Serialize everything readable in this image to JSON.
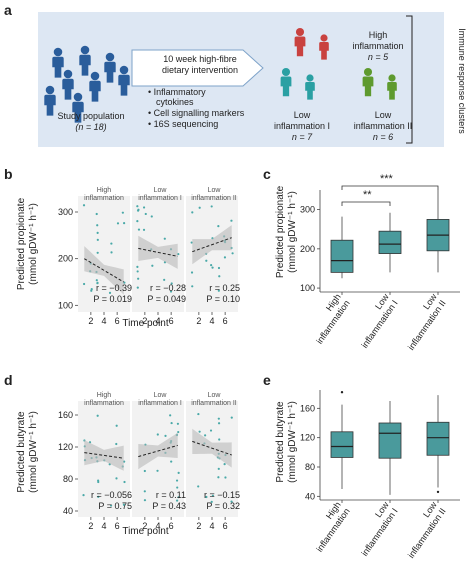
{
  "panel_a": {
    "letter": "a",
    "study_population_label": "Study population",
    "study_n": "(n = 18)",
    "intervention": [
      "10 week high-fibre",
      "dietary intervention"
    ],
    "bullets": [
      "Inflammatory",
      "cytokines",
      "Cell signalling markers",
      "16S sequencing"
    ],
    "clusters": [
      {
        "name": "High",
        "name2": "inflammation",
        "n": "n = 5",
        "color": "#c9423f"
      },
      {
        "name": "Low",
        "name2": "inflammation I",
        "n": "n = 7",
        "color": "#2aa0a3"
      },
      {
        "name": "Low",
        "name2": "inflammation II",
        "n": "n = 6",
        "color": "#5e9a2e"
      }
    ],
    "side_label": "Immune response clusters",
    "person_color": "#2a5d9b"
  },
  "panel_b": {
    "letter": "b",
    "ylabel1": "Predicted propionate",
    "ylabel2": "(mmol gDW⁻¹ h⁻¹)",
    "xlabel": "Time point",
    "facets": [
      {
        "title1": "High",
        "title2": "inflammation",
        "r": "r = −0.39",
        "p": "P = 0.019"
      },
      {
        "title1": "Low",
        "title2": "inflammation I",
        "r": "r = −0.28",
        "p": "P = 0.049"
      },
      {
        "title1": "Low",
        "title2": "inflammation II",
        "r": "r = 0.25",
        "p": "P = 0.10"
      }
    ]
  },
  "panel_c": {
    "letter": "c",
    "ylabel1": "Predicted propionate",
    "ylabel2": "(mmol gDW⁻¹ h⁻¹)",
    "sig1": "**",
    "sig2": "***"
  },
  "panel_d": {
    "letter": "d",
    "ylabel1": "Predicted butyrate",
    "ylabel2": "(mmol gDW⁻¹ h⁻¹)",
    "xlabel": "Time point",
    "facets": [
      {
        "title1": "High",
        "title2": "inflammation",
        "r": "r = −0.056",
        "p": "P = 0.75"
      },
      {
        "title1": "Low",
        "title2": "inflammation I",
        "r": "r = 0.11",
        "p": "P = 0.43"
      },
      {
        "title1": "Low",
        "title2": "inflammation II",
        "r": "r = −0.15",
        "p": "P = 0.32"
      }
    ]
  },
  "panel_e": {
    "letter": "e",
    "ylabel1": "Predicted butyrate",
    "ylabel2": "(mmol gDW⁻¹ h⁻¹)"
  },
  "chart_data": [
    {
      "type": "scatter",
      "panel": "b",
      "x_ticks": [
        2,
        4,
        6
      ],
      "ylim": [
        90,
        330
      ],
      "y_ticks": [
        100,
        200,
        300
      ],
      "series": [
        {
          "name": "High inflammation",
          "trend": [
            [
              1,
              200
            ],
            [
              7,
              150
            ]
          ]
        },
        {
          "name": "Low inflammation I",
          "trend": [
            [
              1,
              222
            ],
            [
              7,
              205
            ]
          ]
        },
        {
          "name": "Low inflammation II",
          "trend": [
            [
              1,
              215
            ],
            [
              7,
              245
            ]
          ]
        }
      ]
    },
    {
      "type": "box",
      "panel": "c",
      "categories": [
        "High inflammation",
        "Low inflammation I",
        "Low inflammation II"
      ],
      "ylim": [
        90,
        350
      ],
      "y_ticks": [
        100,
        200,
        300
      ],
      "boxes": [
        {
          "min": 125,
          "q1": 140,
          "median": 170,
          "q3": 222,
          "max": 282
        },
        {
          "min": 140,
          "q1": 188,
          "median": 212,
          "q3": 245,
          "max": 292
        },
        {
          "min": 140,
          "q1": 195,
          "median": 235,
          "q3": 275,
          "max": 350
        }
      ],
      "color": "#4a9a9c"
    },
    {
      "type": "scatter",
      "panel": "d",
      "x_ticks": [
        2,
        4,
        6
      ],
      "ylim": [
        35,
        175
      ],
      "y_ticks": [
        40,
        80,
        120,
        160
      ],
      "series": [
        {
          "name": "High inflammation",
          "trend": [
            [
              1,
              113
            ],
            [
              7,
              106
            ]
          ]
        },
        {
          "name": "Low inflammation I",
          "trend": [
            [
              1,
              108
            ],
            [
              7,
              122
            ]
          ]
        },
        {
          "name": "Low inflammation II",
          "trend": [
            [
              1,
              127
            ],
            [
              7,
              110
            ]
          ]
        }
      ]
    },
    {
      "type": "box",
      "panel": "e",
      "categories": [
        "High inflammation",
        "Low inflammation I",
        "Low inflammation II"
      ],
      "ylim": [
        35,
        185
      ],
      "y_ticks": [
        40,
        80,
        120,
        160
      ],
      "boxes": [
        {
          "min": 50,
          "q1": 93,
          "median": 108,
          "q3": 128,
          "max": 165,
          "outliers": [
            182
          ]
        },
        {
          "min": 42,
          "q1": 92,
          "median": 126,
          "q3": 140,
          "max": 170
        },
        {
          "min": 52,
          "q1": 96,
          "median": 120,
          "q3": 141,
          "max": 178,
          "outliers": [
            46
          ]
        }
      ],
      "color": "#4a9a9c"
    }
  ]
}
